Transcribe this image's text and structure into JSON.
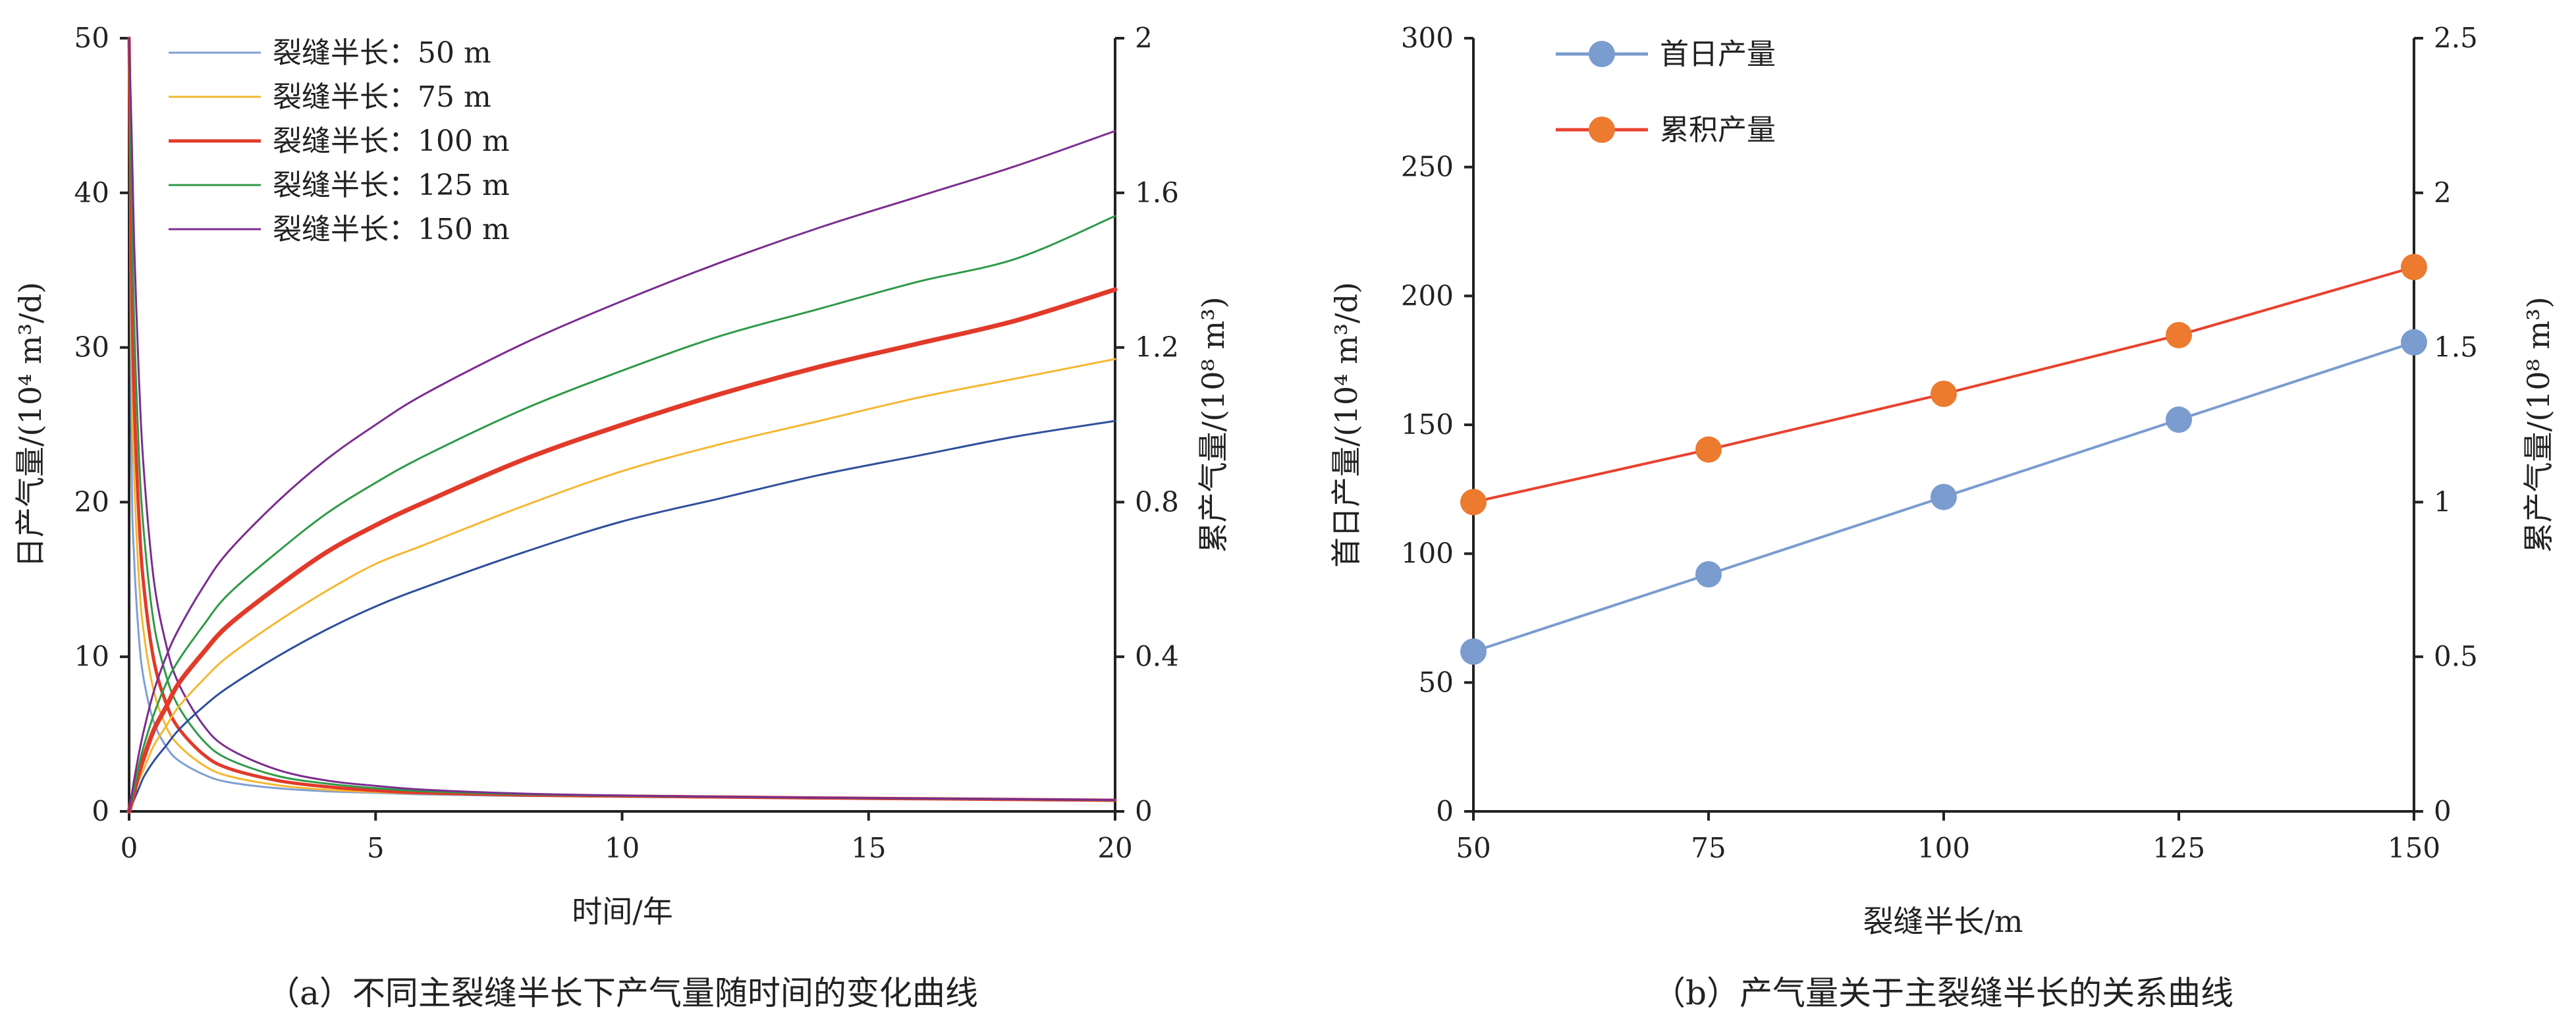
{
  "chart_data": [
    {
      "type": "line",
      "caption": "（a）不同主裂缝半长下产气量随时间的变化曲线",
      "xlabel": "时间/年",
      "ylabel_left": "日产气量/(10⁴ m³/d)",
      "ylabel_right": "累产气量/(10⁸ m³)",
      "xlim": [
        0,
        20
      ],
      "ylim_left": [
        0,
        50
      ],
      "ylim_right": [
        0,
        2
      ],
      "x_ticks": [
        "0",
        "5",
        "10",
        "15",
        "20"
      ],
      "y_left_ticks": [
        "0",
        "10",
        "20",
        "30",
        "40",
        "50"
      ],
      "y_right_ticks": [
        "0",
        "0.4",
        "0.8",
        "1.2",
        "1.6",
        "2"
      ],
      "grid": false,
      "legend_position": "top-left",
      "x": [
        0,
        0.05,
        0.1,
        0.2,
        0.3,
        0.5,
        0.75,
        1,
        1.5,
        2,
        3,
        4,
        5,
        6,
        8,
        10,
        12,
        14,
        16,
        18,
        20
      ],
      "series": [
        {
          "name": "裂缝半长：50 m",
          "color": "#7f9fd3",
          "axis": "left",
          "width": 3,
          "values": [
            50,
            23,
            16.5,
            11.2,
            8.5,
            5.8,
            4.2,
            3.3,
            2.4,
            1.9,
            1.5,
            1.3,
            1.2,
            1.1,
            1.0,
            0.95,
            0.9,
            0.85,
            0.8,
            0.75,
            0.7
          ]
        },
        {
          "name": "裂缝半长：75 m",
          "color": "#f5b731",
          "axis": "left",
          "width": 3,
          "values": [
            50,
            30,
            22,
            15,
            11.5,
            7.8,
            5.5,
            4.3,
            3.0,
            2.3,
            1.7,
            1.4,
            1.25,
            1.15,
            1.03,
            0.97,
            0.92,
            0.86,
            0.81,
            0.76,
            0.71
          ]
        },
        {
          "name": "裂缝半长：100 m",
          "color": "#e23a2a",
          "axis": "left",
          "width": 5,
          "values": [
            50,
            35,
            27,
            19,
            14.5,
            9.8,
            7.0,
            5.4,
            3.7,
            2.8,
            2.0,
            1.6,
            1.35,
            1.2,
            1.06,
            0.99,
            0.93,
            0.87,
            0.82,
            0.77,
            0.72
          ]
        },
        {
          "name": "裂缝半长：125 m",
          "color": "#2e9a47",
          "axis": "left",
          "width": 3,
          "values": [
            50,
            40,
            32,
            23,
            18,
            12.2,
            8.8,
            6.8,
            4.6,
            3.4,
            2.3,
            1.8,
            1.5,
            1.3,
            1.1,
            1.01,
            0.94,
            0.88,
            0.83,
            0.78,
            0.73
          ]
        },
        {
          "name": "裂缝半长：150 m",
          "color": "#7b2d8f",
          "axis": "left",
          "width": 3,
          "values": [
            50,
            44,
            37,
            28,
            22,
            15,
            10.8,
            8.3,
            5.6,
            4.1,
            2.7,
            2.0,
            1.65,
            1.4,
            1.15,
            1.03,
            0.95,
            0.89,
            0.84,
            0.79,
            0.74
          ]
        },
        {
          "name": "",
          "color": "#2e4f9c",
          "axis": "right",
          "width": 3,
          "values": [
            0,
            0.015,
            0.03,
            0.06,
            0.09,
            0.13,
            0.17,
            0.21,
            0.27,
            0.32,
            0.4,
            0.47,
            0.53,
            0.58,
            0.67,
            0.75,
            0.81,
            0.87,
            0.92,
            0.97,
            1.01
          ]
        },
        {
          "name": "",
          "color": "#f5b731",
          "axis": "right",
          "width": 3,
          "values": [
            0,
            0.02,
            0.04,
            0.08,
            0.11,
            0.17,
            0.22,
            0.27,
            0.34,
            0.4,
            0.49,
            0.57,
            0.64,
            0.69,
            0.79,
            0.88,
            0.95,
            1.01,
            1.07,
            1.12,
            1.17
          ]
        },
        {
          "name": "",
          "color": "#e23a2a",
          "axis": "right",
          "width": 7,
          "values": [
            0,
            0.025,
            0.05,
            0.1,
            0.14,
            0.21,
            0.27,
            0.33,
            0.41,
            0.48,
            0.58,
            0.67,
            0.74,
            0.8,
            0.91,
            1.0,
            1.08,
            1.15,
            1.21,
            1.27,
            1.35
          ]
        },
        {
          "name": "",
          "color": "#2e9a47",
          "axis": "right",
          "width": 3,
          "values": [
            0,
            0.03,
            0.06,
            0.12,
            0.17,
            0.25,
            0.33,
            0.39,
            0.48,
            0.56,
            0.67,
            0.77,
            0.85,
            0.92,
            1.04,
            1.14,
            1.23,
            1.3,
            1.37,
            1.43,
            1.54
          ]
        },
        {
          "name": "",
          "color": "#7b2d8f",
          "axis": "right",
          "width": 3,
          "values": [
            0,
            0.04,
            0.08,
            0.15,
            0.21,
            0.31,
            0.4,
            0.47,
            0.58,
            0.67,
            0.8,
            0.91,
            1.0,
            1.08,
            1.21,
            1.32,
            1.42,
            1.51,
            1.59,
            1.67,
            1.76
          ]
        }
      ]
    },
    {
      "type": "line",
      "caption": "（b）产气量关于主裂缝半长的关系曲线",
      "xlabel": "裂缝半长/m",
      "ylabel_left": "首日产量/(10⁴ m³/d)",
      "ylabel_right": "累产气量/(10⁸ m³)",
      "categories": [
        50,
        75,
        100,
        125,
        150
      ],
      "xlim": [
        50,
        150
      ],
      "ylim_left": [
        0,
        300
      ],
      "ylim_right": [
        0,
        2.5
      ],
      "x_ticks": [
        "50",
        "75",
        "100",
        "125",
        "150"
      ],
      "y_left_ticks": [
        "0",
        "50",
        "100",
        "150",
        "200",
        "250",
        "300"
      ],
      "y_right_ticks": [
        "0",
        "0.5",
        "1",
        "1.5",
        "2",
        "2.5"
      ],
      "grid": false,
      "legend_position": "top-left",
      "series": [
        {
          "name": "首日产量",
          "color": "#7a9ccf",
          "axis": "left",
          "values": [
            62,
            92,
            122,
            152,
            182
          ]
        },
        {
          "name": "累积产量",
          "color": "#e8422f",
          "marker_color": "#ec7a2f",
          "axis": "right",
          "values": [
            1.0,
            1.17,
            1.35,
            1.54,
            1.76
          ]
        }
      ]
    }
  ]
}
